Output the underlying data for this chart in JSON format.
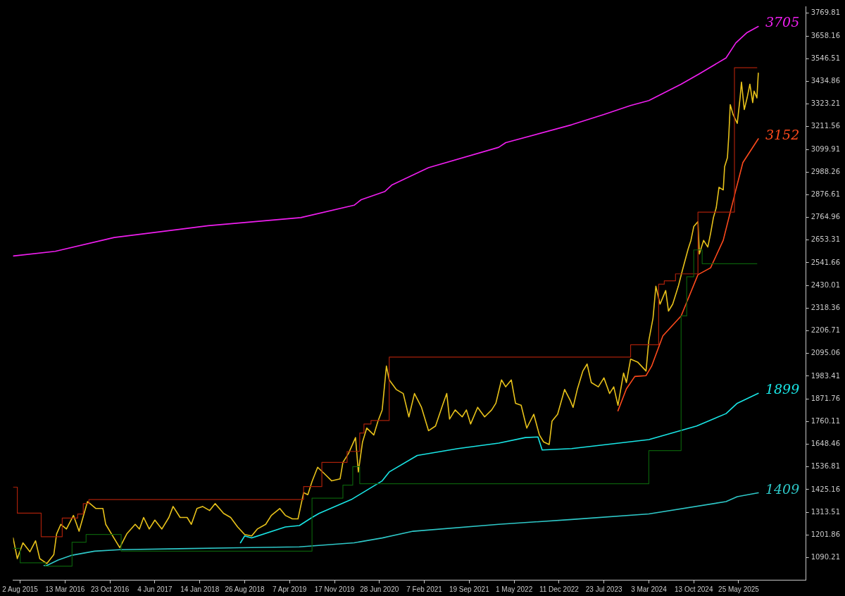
{
  "chart_data": {
    "type": "line",
    "marker": "none",
    "line_style": "solid",
    "legend": false,
    "grid": false,
    "xlim": [
      "2015-06-28",
      "2026-04-26"
    ],
    "ylim": [
      981,
      3804
    ],
    "xticks": [
      {
        "value": "2015-08-02",
        "label": "2 Aug 2015"
      },
      {
        "value": "2016-03-13",
        "label": "13 Mar 2016"
      },
      {
        "value": "2016-10-23",
        "label": "23 Oct 2016"
      },
      {
        "value": "2017-06-04",
        "label": "4 Jun 2017"
      },
      {
        "value": "2018-01-14",
        "label": "14 Jan 2018"
      },
      {
        "value": "2018-08-26",
        "label": "26 Aug 2018"
      },
      {
        "value": "2019-04-07",
        "label": "7 Apr 2019"
      },
      {
        "value": "2019-11-17",
        "label": "17 Nov 2019"
      },
      {
        "value": "2020-06-28",
        "label": "28 Jun 2020"
      },
      {
        "value": "2021-02-07",
        "label": "7 Feb 2021"
      },
      {
        "value": "2021-09-19",
        "label": "19 Sep 2021"
      },
      {
        "value": "2022-05-01",
        "label": "1 May 2022"
      },
      {
        "value": "2022-12-11",
        "label": "11 Dec 2022"
      },
      {
        "value": "2023-07-23",
        "label": "23 Jul 2023"
      },
      {
        "value": "2024-03-03",
        "label": "3 Mar 2024"
      },
      {
        "value": "2024-10-13",
        "label": "13 Oct 2024"
      },
      {
        "value": "2025-05-25",
        "label": "25 May 2025"
      }
    ],
    "yticks": [
      1090.21,
      1201.86,
      1313.51,
      1425.16,
      1536.81,
      1648.46,
      1760.11,
      1871.76,
      1983.41,
      2095.06,
      2206.71,
      2318.36,
      2430.01,
      2541.66,
      2653.31,
      2764.96,
      2876.61,
      2988.26,
      3099.91,
      3211.56,
      3323.21,
      3434.86,
      3546.51,
      3658.16,
      3769.81
    ],
    "series": [
      {
        "type": "step",
        "color": "#0b5e0b",
        "x": [
          "2015-06-28",
          "2015-08-02",
          "2015-12-06",
          "2016-04-17",
          "2016-06-26",
          "2016-12-18",
          "2019-07-28",
          "2019-12-29",
          "2020-02-16",
          "2020-03-22",
          "2024-03-03",
          "2024-08-11",
          "2024-09-08",
          "2024-10-13",
          "2024-11-24",
          "2025-08-24"
        ],
        "values": [
          1136,
          1065,
          1048,
          1166,
          1204,
          1122,
          1383,
          1447,
          1538,
          1454,
          1617,
          2280,
          2473,
          2605,
          2537,
          2537
        ]
      },
      {
        "type": "step",
        "color": "#a8200a",
        "x": [
          "2015-06-28",
          "2015-07-19",
          "2015-11-15",
          "2016-02-28",
          "2016-05-15",
          "2016-06-12",
          "2016-07-10",
          "2019-06-16",
          "2019-09-15",
          "2020-01-19",
          "2020-03-22",
          "2020-04-12",
          "2020-05-17",
          "2020-08-16",
          "2023-12-03",
          "2024-04-21",
          "2024-05-19",
          "2024-07-14",
          "2024-11-03",
          "2025-05-04",
          "2025-08-24"
        ],
        "values": [
          1437,
          1309,
          1193,
          1285,
          1305,
          1356,
          1376,
          1440,
          1559,
          1613,
          1704,
          1748,
          1765,
          2077,
          2138,
          2436,
          2453,
          2487,
          2791,
          3502,
          3502
        ]
      },
      {
        "color": "#e8c21a",
        "x": [
          "2015-06-28",
          "2015-07-19",
          "2015-08-16",
          "2015-09-20",
          "2015-10-18",
          "2015-11-08",
          "2015-12-13",
          "2016-01-17",
          "2016-01-31",
          "2016-02-21",
          "2016-03-20",
          "2016-04-24",
          "2016-05-22",
          "2016-07-03",
          "2016-08-14",
          "2016-09-18",
          "2016-10-02",
          "2016-12-11",
          "2017-01-15",
          "2017-02-26",
          "2017-03-19",
          "2017-04-09",
          "2017-05-07",
          "2017-06-04",
          "2017-07-09",
          "2017-08-13",
          "2017-09-03",
          "2017-10-08",
          "2017-11-12",
          "2017-12-03",
          "2017-12-31",
          "2018-01-28",
          "2018-03-04",
          "2018-04-01",
          "2018-05-13",
          "2018-06-17",
          "2018-07-22",
          "2018-08-26",
          "2018-09-30",
          "2018-10-28",
          "2018-12-09",
          "2019-01-06",
          "2019-02-17",
          "2019-03-17",
          "2019-04-21",
          "2019-05-19",
          "2019-06-16",
          "2019-07-07",
          "2019-07-28",
          "2019-08-25",
          "2019-09-29",
          "2019-11-03",
          "2019-12-15",
          "2019-12-29",
          "2020-01-26",
          "2020-03-01",
          "2020-03-15",
          "2020-04-05",
          "2020-04-26",
          "2020-05-31",
          "2020-06-21",
          "2020-07-12",
          "2020-08-02",
          "2020-08-16",
          "2020-09-20",
          "2020-10-25",
          "2020-11-22",
          "2020-12-20",
          "2021-01-24",
          "2021-02-28",
          "2021-04-04",
          "2021-05-09",
          "2021-05-30",
          "2021-06-13",
          "2021-07-11",
          "2021-08-15",
          "2021-09-05",
          "2021-09-26",
          "2021-10-31",
          "2021-12-05",
          "2022-01-09",
          "2022-01-30",
          "2022-02-27",
          "2022-03-20",
          "2022-04-17",
          "2022-05-08",
          "2022-06-05",
          "2022-07-03",
          "2022-08-07",
          "2022-09-04",
          "2022-09-25",
          "2022-10-23",
          "2022-11-06",
          "2022-12-04",
          "2023-01-08",
          "2023-02-05",
          "2023-02-19",
          "2023-03-12",
          "2023-04-09",
          "2023-04-30",
          "2023-05-21",
          "2023-06-25",
          "2023-07-23",
          "2023-08-20",
          "2023-09-10",
          "2023-10-01",
          "2023-10-29",
          "2023-11-12",
          "2023-12-03",
          "2024-01-07",
          "2024-02-18",
          "2024-03-03",
          "2024-03-24",
          "2024-04-07",
          "2024-04-28",
          "2024-05-26",
          "2024-06-09",
          "2024-06-30",
          "2024-07-28",
          "2024-08-18",
          "2024-09-15",
          "2024-09-29",
          "2024-10-13",
          "2024-11-03",
          "2024-11-10",
          "2024-12-01",
          "2024-12-22",
          "2025-01-05",
          "2025-01-19",
          "2025-02-02",
          "2025-02-16",
          "2025-03-09",
          "2025-03-16",
          "2025-03-30",
          "2025-04-06",
          "2025-04-13",
          "2025-04-27",
          "2025-05-18",
          "2025-06-01",
          "2025-06-08",
          "2025-06-22",
          "2025-07-06",
          "2025-07-20",
          "2025-08-03",
          "2025-08-10",
          "2025-08-24",
          "2025-08-31"
        ],
        "values": [
          1187,
          1085,
          1163,
          1119,
          1173,
          1085,
          1061,
          1105,
          1207,
          1254,
          1231,
          1298,
          1220,
          1366,
          1332,
          1332,
          1254,
          1139,
          1207,
          1254,
          1231,
          1288,
          1231,
          1275,
          1231,
          1288,
          1342,
          1288,
          1288,
          1254,
          1332,
          1342,
          1322,
          1356,
          1308,
          1288,
          1241,
          1204,
          1197,
          1231,
          1254,
          1298,
          1332,
          1298,
          1281,
          1281,
          1410,
          1400,
          1465,
          1535,
          1502,
          1468,
          1478,
          1559,
          1603,
          1681,
          1512,
          1660,
          1728,
          1694,
          1762,
          1817,
          2033,
          1965,
          1918,
          1898,
          1783,
          1898,
          1830,
          1715,
          1738,
          1840,
          1898,
          1772,
          1817,
          1783,
          1817,
          1748,
          1830,
          1783,
          1817,
          1850,
          1965,
          1931,
          1965,
          1850,
          1840,
          1728,
          1796,
          1694,
          1660,
          1647,
          1762,
          1796,
          1918,
          1864,
          1830,
          1918,
          2009,
          2043,
          1952,
          1931,
          1975,
          1898,
          1931,
          1840,
          1999,
          1952,
          2067,
          2053,
          2009,
          2160,
          2270,
          2426,
          2338,
          2405,
          2304,
          2338,
          2426,
          2507,
          2609,
          2652,
          2720,
          2744,
          2585,
          2652,
          2619,
          2686,
          2764,
          2812,
          2913,
          2900,
          3015,
          3059,
          3171,
          3320,
          3272,
          3228,
          3353,
          3431,
          3296,
          3353,
          3421,
          3330,
          3387,
          3353,
          3475
        ]
      },
      {
        "name": "1409",
        "color": "#2ec8c8",
        "x": [
          "2015-11-29",
          "2015-12-13",
          "2016-02-07",
          "2016-04-17",
          "2016-08-07",
          "2016-12-11",
          "2018-07-29",
          "2019-05-26",
          "2020-02-23",
          "2020-07-12",
          "2020-12-13",
          "2022-02-13",
          "2023-02-12",
          "2024-03-03",
          "2025-03-23",
          "2025-05-18",
          "2025-08-31"
        ],
        "values": [
          1051,
          1051,
          1078,
          1102,
          1122,
          1129,
          1139,
          1143,
          1163,
          1187,
          1220,
          1254,
          1278,
          1305,
          1366,
          1390,
          1409
        ]
      },
      {
        "name": "1899",
        "color": "#19e6e6",
        "x": [
          "2018-08-05",
          "2018-08-26",
          "2018-09-30",
          "2019-03-17",
          "2019-05-26",
          "2019-07-28",
          "2019-09-01",
          "2020-02-09",
          "2020-07-12",
          "2020-08-16",
          "2021-01-03",
          "2021-07-25",
          "2022-02-13",
          "2022-06-26",
          "2022-08-28",
          "2022-09-18",
          "2023-02-12",
          "2024-03-03",
          "2024-10-27",
          "2025-03-23",
          "2025-05-18",
          "2025-08-31"
        ],
        "values": [
          1163,
          1197,
          1187,
          1241,
          1248,
          1288,
          1308,
          1376,
          1468,
          1512,
          1593,
          1627,
          1654,
          1681,
          1684,
          1620,
          1627,
          1671,
          1738,
          1799,
          1850,
          1899
        ]
      },
      {
        "name": "3152",
        "color": "#ff4a1c",
        "x": [
          "2023-10-01",
          "2023-11-12",
          "2023-12-24",
          "2024-02-18",
          "2024-03-17",
          "2024-05-12",
          "2024-08-11",
          "2024-11-03",
          "2025-01-05",
          "2025-03-09",
          "2025-05-11",
          "2025-06-15",
          "2025-08-31"
        ],
        "values": [
          1813,
          1921,
          1982,
          1986,
          2033,
          2182,
          2280,
          2483,
          2517,
          2652,
          2900,
          3035,
          3152
        ]
      },
      {
        "name": "3705",
        "color": "#f01ef0",
        "x": [
          "2015-06-28",
          "2016-01-24",
          "2016-11-13",
          "2018-02-25",
          "2019-06-02",
          "2020-02-23",
          "2020-03-29",
          "2020-07-26",
          "2020-08-30",
          "2021-02-28",
          "2022-02-13",
          "2022-03-20",
          "2023-02-12",
          "2023-07-23",
          "2023-12-03",
          "2024-03-03",
          "2024-08-11",
          "2024-11-10",
          "2025-03-23",
          "2025-05-11",
          "2025-07-06",
          "2025-08-31"
        ],
        "values": [
          2575,
          2598,
          2666,
          2724,
          2764,
          2825,
          2852,
          2893,
          2925,
          3010,
          3110,
          3133,
          3221,
          3272,
          3316,
          3340,
          3421,
          3472,
          3550,
          3624,
          3675,
          3705
        ]
      }
    ]
  }
}
